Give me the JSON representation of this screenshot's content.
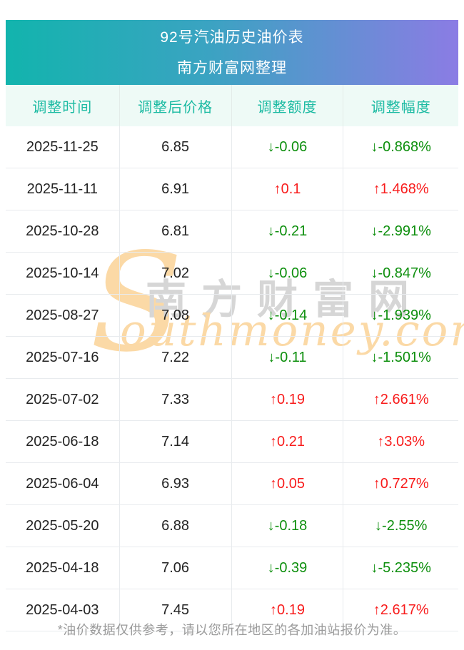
{
  "header": {
    "title": "92号汽油历史油价表",
    "subtitle": "南方财富网整理"
  },
  "watermark": {
    "s_glyph": "S",
    "cn_text": "南方财富网",
    "en_text": "outhmoney.com"
  },
  "table": {
    "columns": [
      "调整时间",
      "调整后价格",
      "调整额度",
      "调整幅度"
    ],
    "rows": [
      {
        "date": "2025-11-25",
        "price": "6.85",
        "change": "↓-0.06",
        "pct": "↓-0.868%",
        "dir": "down"
      },
      {
        "date": "2025-11-11",
        "price": "6.91",
        "change": "↑0.1",
        "pct": "↑1.468%",
        "dir": "up"
      },
      {
        "date": "2025-10-28",
        "price": "6.81",
        "change": "↓-0.21",
        "pct": "↓-2.991%",
        "dir": "down"
      },
      {
        "date": "2025-10-14",
        "price": "7.02",
        "change": "↓-0.06",
        "pct": "↓-0.847%",
        "dir": "down"
      },
      {
        "date": "2025-08-27",
        "price": "7.08",
        "change": "↓-0.14",
        "pct": "↓-1.939%",
        "dir": "down"
      },
      {
        "date": "2025-07-16",
        "price": "7.22",
        "change": "↓-0.11",
        "pct": "↓-1.501%",
        "dir": "down"
      },
      {
        "date": "2025-07-02",
        "price": "7.33",
        "change": "↑0.19",
        "pct": "↑2.661%",
        "dir": "up"
      },
      {
        "date": "2025-06-18",
        "price": "7.14",
        "change": "↑0.21",
        "pct": "↑3.03%",
        "dir": "up"
      },
      {
        "date": "2025-06-04",
        "price": "6.93",
        "change": "↑0.05",
        "pct": "↑0.727%",
        "dir": "up"
      },
      {
        "date": "2025-05-20",
        "price": "6.88",
        "change": "↓-0.18",
        "pct": "↓-2.55%",
        "dir": "down"
      },
      {
        "date": "2025-04-18",
        "price": "7.06",
        "change": "↓-0.39",
        "pct": "↓-5.235%",
        "dir": "down"
      },
      {
        "date": "2025-04-03",
        "price": "7.45",
        "change": "↑0.19",
        "pct": "↑2.617%",
        "dir": "up"
      }
    ]
  },
  "footer": {
    "note": "*油价数据仅供参考，请以您所在地区的各加油站报价为准。"
  },
  "colors": {
    "gradient_left": "#12b4ad",
    "gradient_right": "#8b7ce4",
    "header_row_bg": "#eefaf6",
    "header_row_text": "#1dbba3",
    "up_red": "#f81c1c",
    "down_green": "#0d8f0d",
    "watermark_peach": "#fbd9a6",
    "watermark_gray": "#d6d6d6",
    "footnote_gray": "#9b9b9b"
  }
}
